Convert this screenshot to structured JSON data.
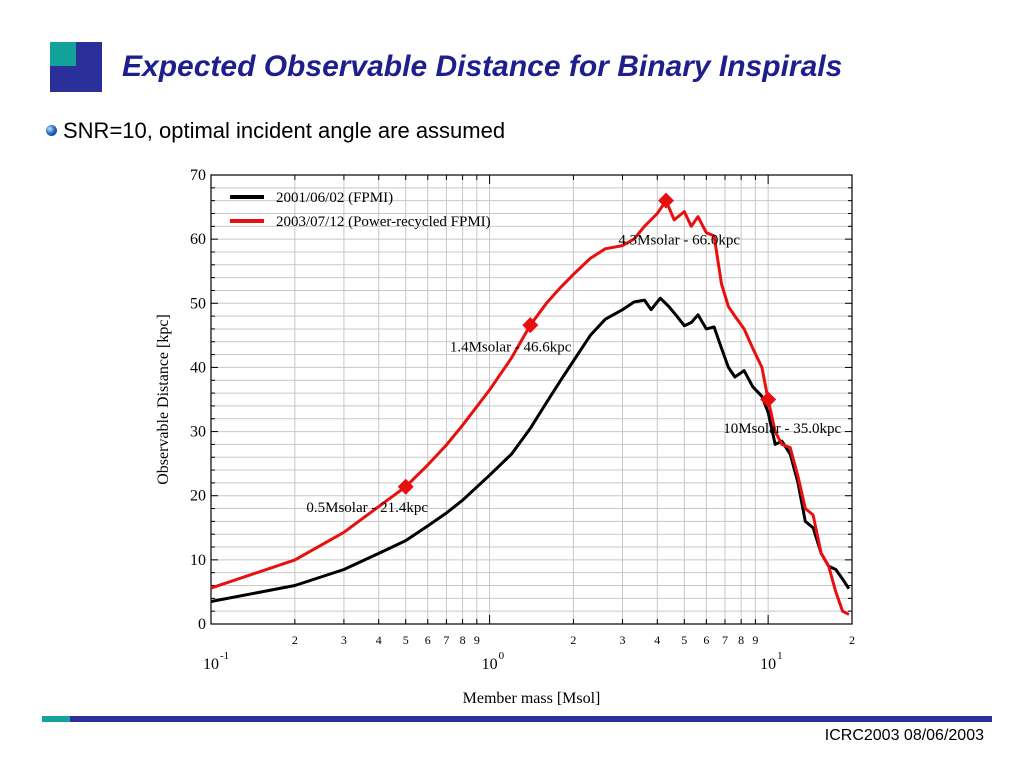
{
  "slide": {
    "title": "Expected Observable Distance for Binary Inspirals",
    "bullet": "SNR=10, optimal incident angle are assumed",
    "footer": "ICRC2003 08/06/2003",
    "colors": {
      "title": "#1e1e8c",
      "accent_blue": "#2b2f9a",
      "accent_teal": "#14a39a"
    }
  },
  "chart_data": {
    "type": "line",
    "title": "",
    "xlabel": "Member mass [Msol]",
    "ylabel": "Observable Distance [kpc]",
    "x_scale": "log",
    "xlim": [
      0.1,
      20
    ],
    "ylim": [
      0,
      70
    ],
    "y_ticks": [
      0,
      10,
      20,
      30,
      40,
      50,
      60,
      70
    ],
    "x_major_ticks": [
      {
        "value": 0.1,
        "base": "10",
        "exp": "-1"
      },
      {
        "value": 1,
        "base": "10",
        "exp": "0"
      },
      {
        "value": 10,
        "base": "10",
        "exp": "1"
      }
    ],
    "x_minor_ticks": [
      {
        "value": 0.2,
        "label": "2"
      },
      {
        "value": 0.3,
        "label": "3"
      },
      {
        "value": 0.4,
        "label": "4"
      },
      {
        "value": 0.5,
        "label": "5"
      },
      {
        "value": 0.6,
        "label": "6"
      },
      {
        "value": 0.7,
        "label": "7"
      },
      {
        "value": 0.8,
        "label": "8"
      },
      {
        "value": 0.9,
        "label": "9"
      },
      {
        "value": 2,
        "label": "2"
      },
      {
        "value": 3,
        "label": "3"
      },
      {
        "value": 4,
        "label": "4"
      },
      {
        "value": 5,
        "label": "5"
      },
      {
        "value": 6,
        "label": "6"
      },
      {
        "value": 7,
        "label": "7"
      },
      {
        "value": 8,
        "label": "8"
      },
      {
        "value": 9,
        "label": "9"
      },
      {
        "value": 20,
        "label": "2"
      }
    ],
    "grid": true,
    "legend_position": "top-left",
    "series": [
      {
        "name": "2001/06/02 (FPMI)",
        "color": "#000000",
        "points": [
          [
            0.1,
            3.5
          ],
          [
            0.2,
            6
          ],
          [
            0.3,
            8.5
          ],
          [
            0.4,
            11
          ],
          [
            0.5,
            13
          ],
          [
            0.6,
            15.3
          ],
          [
            0.7,
            17.3
          ],
          [
            0.8,
            19.3
          ],
          [
            1,
            23.2
          ],
          [
            1.2,
            26.5
          ],
          [
            1.4,
            30.5
          ],
          [
            1.6,
            34.5
          ],
          [
            1.8,
            38
          ],
          [
            2,
            41
          ],
          [
            2.3,
            45
          ],
          [
            2.6,
            47.5
          ],
          [
            3,
            49
          ],
          [
            3.3,
            50.2
          ],
          [
            3.6,
            50.5
          ],
          [
            3.8,
            49
          ],
          [
            4.1,
            50.8
          ],
          [
            4.4,
            49.5
          ],
          [
            4.7,
            48
          ],
          [
            5,
            46.5
          ],
          [
            5.3,
            47
          ],
          [
            5.6,
            48.2
          ],
          [
            6,
            46
          ],
          [
            6.4,
            46.3
          ],
          [
            6.8,
            43
          ],
          [
            7.2,
            40
          ],
          [
            7.6,
            38.5
          ],
          [
            8.2,
            39.5
          ],
          [
            8.8,
            37
          ],
          [
            9.5,
            35.5
          ],
          [
            10,
            33
          ],
          [
            10.6,
            28
          ],
          [
            11.2,
            28.5
          ],
          [
            12,
            26.5
          ],
          [
            12.8,
            22
          ],
          [
            13.6,
            16
          ],
          [
            14.5,
            15
          ],
          [
            15.5,
            11
          ],
          [
            16.5,
            9
          ],
          [
            17.5,
            8.5
          ],
          [
            18.5,
            7
          ],
          [
            19.5,
            5.5
          ]
        ]
      },
      {
        "name": "2003/07/12 (Power-recycled FPMI)",
        "color": "#e8100f",
        "points": [
          [
            0.1,
            5.6
          ],
          [
            0.2,
            10
          ],
          [
            0.3,
            14.3
          ],
          [
            0.4,
            18.3
          ],
          [
            0.5,
            21.4
          ],
          [
            0.6,
            24.8
          ],
          [
            0.7,
            27.9
          ],
          [
            0.8,
            31
          ],
          [
            1,
            36.5
          ],
          [
            1.2,
            41.5
          ],
          [
            1.4,
            46.6
          ],
          [
            1.6,
            50
          ],
          [
            1.8,
            52.5
          ],
          [
            2,
            54.5
          ],
          [
            2.3,
            57
          ],
          [
            2.6,
            58.5
          ],
          [
            3,
            59
          ],
          [
            3.3,
            60
          ],
          [
            3.6,
            62
          ],
          [
            4,
            64
          ],
          [
            4.3,
            66
          ],
          [
            4.6,
            63
          ],
          [
            5,
            64.3
          ],
          [
            5.3,
            62
          ],
          [
            5.6,
            63.5
          ],
          [
            6,
            61
          ],
          [
            6.4,
            60.5
          ],
          [
            6.8,
            53
          ],
          [
            7.2,
            49.5
          ],
          [
            7.6,
            48
          ],
          [
            8.2,
            46
          ],
          [
            8.8,
            43
          ],
          [
            9.5,
            40
          ],
          [
            10,
            35
          ],
          [
            10.6,
            30
          ],
          [
            11.2,
            28
          ],
          [
            12,
            27.5
          ],
          [
            12.8,
            23
          ],
          [
            13.6,
            18
          ],
          [
            14.5,
            17
          ],
          [
            15.5,
            11
          ],
          [
            16.5,
            9
          ],
          [
            17.5,
            5
          ],
          [
            18.5,
            2
          ],
          [
            19.5,
            1.5
          ]
        ]
      }
    ],
    "markers": [
      {
        "x": 0.5,
        "y": 21.4,
        "color": "#e8100f"
      },
      {
        "x": 1.4,
        "y": 46.6,
        "color": "#e8100f"
      },
      {
        "x": 4.3,
        "y": 66.0,
        "color": "#e8100f"
      },
      {
        "x": 10,
        "y": 35.0,
        "color": "#e8100f"
      }
    ],
    "annotations": [
      {
        "text": "0.5Msolar - 21.4kpc",
        "x": 0.22,
        "y": 17.5
      },
      {
        "text": "1.4Msolar - 46.6kpc",
        "x": 0.72,
        "y": 42.5
      },
      {
        "text": "4.3Msolar - 66.0kpc",
        "x": 2.9,
        "y": 59.2
      },
      {
        "text": "10Msolar - 35.0kpc",
        "x": 6.9,
        "y": 29.8
      }
    ]
  }
}
